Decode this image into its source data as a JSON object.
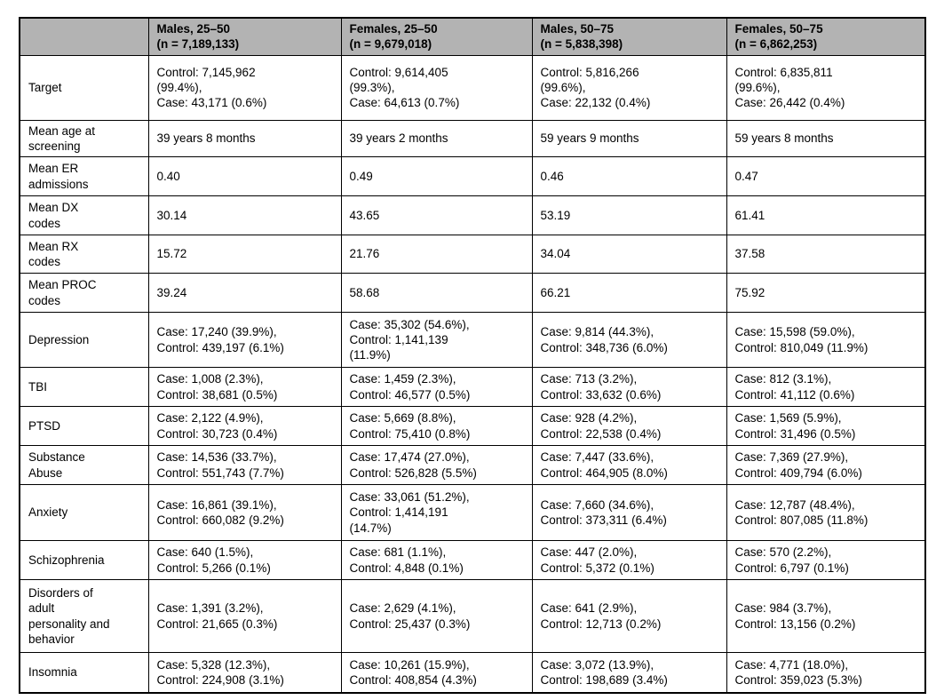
{
  "table": {
    "header_bg": "#b3b3b3",
    "border_color": "#000000",
    "columns": [
      {
        "label": ""
      },
      {
        "label": "Males, 25–50\n(n = 7,189,133)"
      },
      {
        "label": "Females, 25–50\n(n = 9,679,018)"
      },
      {
        "label": "Males, 50–75\n(n = 5,838,398)"
      },
      {
        "label": "Females, 50–75\n(n = 6,862,253)"
      }
    ],
    "rows": [
      {
        "label": "Target",
        "cells": [
          "Control: 7,145,962\n(99.4%),\nCase: 43,171 (0.6%)",
          "Control: 9,614,405\n(99.3%),\nCase: 64,613 (0.7%)",
          "Control: 5,816,266\n(99.6%),\nCase: 22,132 (0.4%)",
          "Control: 6,835,811\n(99.6%),\nCase: 26,442 (0.4%)"
        ]
      },
      {
        "label": "Mean age at\nscreening",
        "cells": [
          "39 years 8 months",
          "39 years 2 months",
          "59 years 9 months",
          "59 years 8 months"
        ]
      },
      {
        "label": "Mean ER\nadmissions",
        "cells": [
          "0.40",
          "0.49",
          "0.46",
          "0.47"
        ]
      },
      {
        "label": "Mean DX\ncodes",
        "cells": [
          "30.14",
          "43.65",
          "53.19",
          "61.41"
        ]
      },
      {
        "label": "Mean RX\ncodes",
        "cells": [
          "15.72",
          "21.76",
          "34.04",
          "37.58"
        ]
      },
      {
        "label": "Mean PROC\ncodes",
        "cells": [
          "39.24",
          "58.68",
          "66.21",
          "75.92"
        ]
      },
      {
        "label": "Depression",
        "cells": [
          "Case: 17,240 (39.9%),\nControl: 439,197 (6.1%)",
          "Case: 35,302 (54.6%),\nControl: 1,141,139\n(11.9%)",
          "Case: 9,814 (44.3%),\nControl: 348,736 (6.0%)",
          "Case: 15,598 (59.0%),\nControl: 810,049 (11.9%)"
        ]
      },
      {
        "label": "TBI",
        "cells": [
          "Case: 1,008 (2.3%),\nControl: 38,681 (0.5%)",
          "Case: 1,459 (2.3%),\nControl: 46,577 (0.5%)",
          "Case: 713 (3.2%),\nControl: 33,632 (0.6%)",
          "Case: 812 (3.1%),\nControl: 41,112 (0.6%)"
        ]
      },
      {
        "label": "PTSD",
        "cells": [
          "Case: 2,122 (4.9%),\nControl: 30,723 (0.4%)",
          "Case: 5,669 (8.8%),\nControl: 75,410 (0.8%)",
          "Case: 928 (4.2%),\nControl: 22,538 (0.4%)",
          "Case: 1,569 (5.9%),\nControl: 31,496 (0.5%)"
        ]
      },
      {
        "label": "Substance\nAbuse",
        "cells": [
          "Case: 14,536 (33.7%),\nControl: 551,743 (7.7%)",
          "Case: 17,474 (27.0%),\nControl: 526,828 (5.5%)",
          "Case: 7,447 (33.6%),\nControl: 464,905 (8.0%)",
          "Case: 7,369 (27.9%),\nControl: 409,794 (6.0%)"
        ]
      },
      {
        "label": "Anxiety",
        "cells": [
          "Case: 16,861 (39.1%),\nControl: 660,082 (9.2%)",
          "Case: 33,061 (51.2%),\nControl: 1,414,191\n(14.7%)",
          "Case: 7,660 (34.6%),\nControl: 373,311 (6.4%)",
          "Case: 12,787 (48.4%),\nControl: 807,085 (11.8%)"
        ]
      },
      {
        "label": "Schizophrenia",
        "cells": [
          "Case: 640 (1.5%),\nControl: 5,266 (0.1%)",
          "Case: 681 (1.1%),\nControl: 4,848 (0.1%)",
          "Case: 447 (2.0%),\nControl: 5,372 (0.1%)",
          "Case: 570 (2.2%),\nControl: 6,797 (0.1%)"
        ]
      },
      {
        "label": "Disorders of\nadult\npersonality and\nbehavior",
        "cells": [
          "Case: 1,391 (3.2%),\nControl: 21,665 (0.3%)",
          "Case: 2,629 (4.1%),\nControl: 25,437 (0.3%)",
          "Case: 641 (2.9%),\nControl: 12,713 (0.2%)",
          "Case: 984 (3.7%),\nControl: 13,156 (0.2%)"
        ]
      },
      {
        "label": "Insomnia",
        "cells": [
          "Case: 5,328 (12.3%),\nControl: 224,908 (3.1%)",
          "Case: 10,261 (15.9%),\nControl: 408,854 (4.3%)",
          "Case: 3,072 (13.9%),\nControl: 198,689 (3.4%)",
          "Case: 4,771 (18.0%),\nControl: 359,023 (5.3%)"
        ]
      }
    ]
  }
}
